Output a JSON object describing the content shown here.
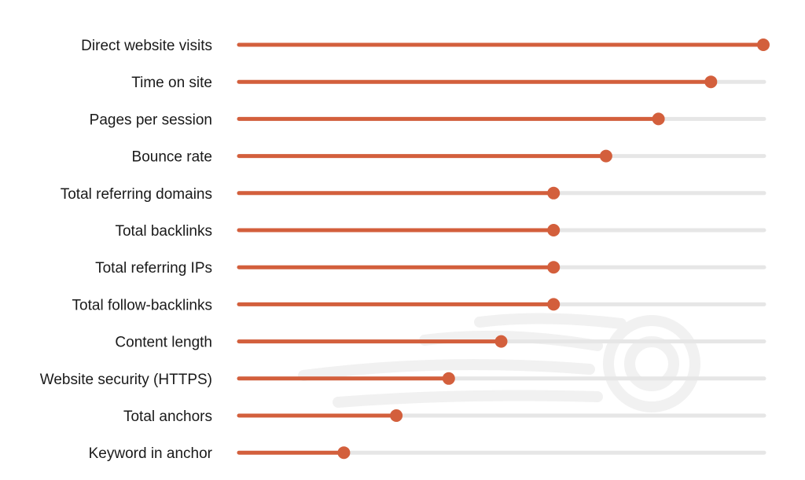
{
  "chart_data": {
    "type": "bar",
    "orientation": "horizontal",
    "style": "lollipop",
    "categories": [
      "Direct website visits",
      "Time on site",
      "Pages per session",
      "Bounce rate",
      "Total referring domains",
      "Total backlinks",
      "Total referring IPs",
      "Total follow-backlinks",
      "Content length",
      "Website security (HTTPS)",
      "Total anchors",
      "Keyword in anchor"
    ],
    "values": [
      1.0,
      0.9,
      0.8,
      0.7,
      0.6,
      0.6,
      0.6,
      0.6,
      0.5,
      0.4,
      0.3,
      0.2
    ],
    "xlim": [
      0,
      1
    ],
    "grid": false,
    "legend": "none",
    "colors": {
      "bar": "#d35f3c",
      "track": "#e6e6e6",
      "watermark": "#f1f1f1"
    }
  },
  "watermark_icon": "semrush-fireball-icon"
}
